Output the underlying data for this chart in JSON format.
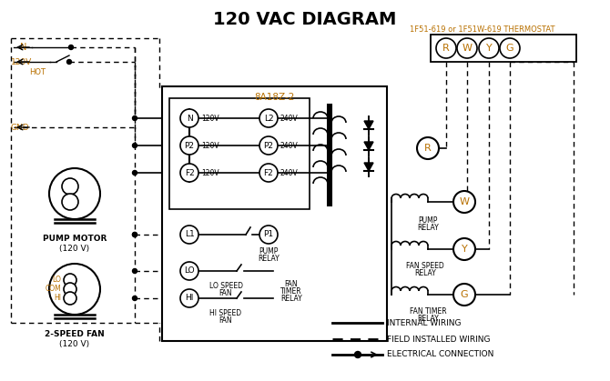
{
  "title": "120 VAC DIAGRAM",
  "title_color": "#000000",
  "title_fontsize": 14,
  "bg_color": "#ffffff",
  "thermostat_label": "1F51-619 or 1F51W-619 THERMOSTAT",
  "thermostat_color": "#b87000",
  "control_box_label": "8A18Z-2",
  "control_box_color": "#b87000",
  "terminal_labels": [
    "R",
    "W",
    "Y",
    "G"
  ],
  "terminal_color": "#b87000",
  "orange": "#b87000",
  "black": "#000000",
  "white": "#ffffff"
}
